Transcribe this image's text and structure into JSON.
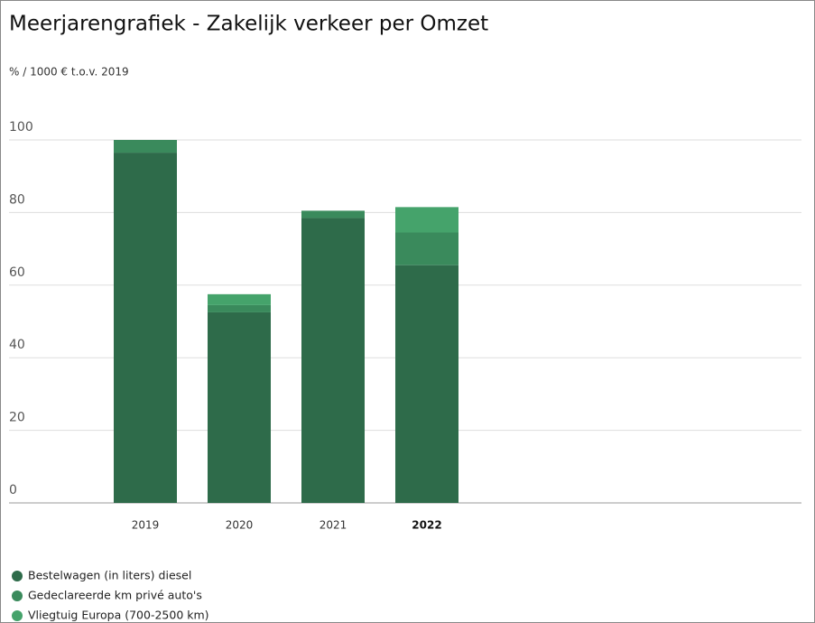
{
  "chart_data": {
    "type": "stacked_bar",
    "title": "Meerjarengrafiek - Zakelijk verkeer per Omzet",
    "subtitle": "% / 1000 € t.o.v. 2019",
    "categories": [
      "2019",
      "2020",
      "2021",
      "2022"
    ],
    "series": [
      {
        "name": "Bestelwagen (in liters) diesel",
        "color": "#2e6b4a",
        "values": [
          96.5,
          52.5,
          78.5,
          65.5
        ]
      },
      {
        "name": "Gedeclareerde km privé auto's",
        "color": "#3a8a5c",
        "values": [
          3.5,
          2,
          2,
          9
        ]
      },
      {
        "name": "Vliegtuig Europa (700-2500 km)",
        "color": "#45a36b",
        "values": [
          0,
          3,
          0,
          7
        ]
      }
    ],
    "ylim": [
      0,
      100
    ],
    "yticks": [
      0,
      20,
      40,
      60,
      80,
      100
    ],
    "grid": true,
    "legend": "bottom"
  }
}
